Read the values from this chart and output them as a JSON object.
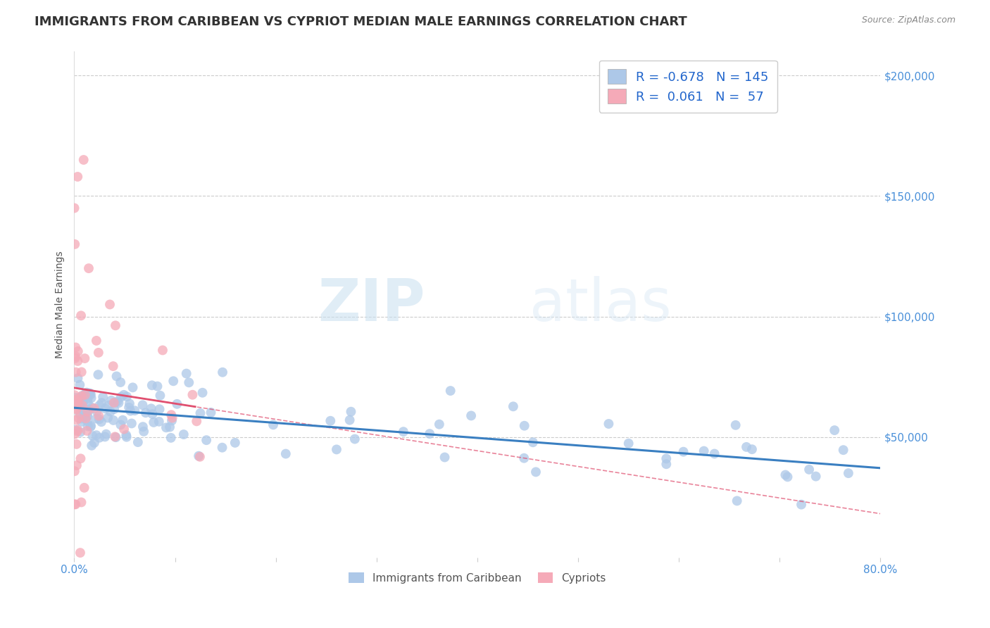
{
  "title": "IMMIGRANTS FROM CARIBBEAN VS CYPRIOT MEDIAN MALE EARNINGS CORRELATION CHART",
  "source": "Source: ZipAtlas.com",
  "xlabel": "",
  "ylabel": "Median Male Earnings",
  "series1_name": "Immigrants from Caribbean",
  "series2_name": "Cypriots",
  "series1_color": "#adc8e8",
  "series2_color": "#f5aab8",
  "series1_line_color": "#3a7fc1",
  "series2_line_color": "#e05070",
  "series1_R": "-0.678",
  "series1_N": "145",
  "series2_R": "0.061",
  "series2_N": "57",
  "xmin": 0.0,
  "xmax": 0.8,
  "ymin": 0,
  "ymax": 210000,
  "yticks": [
    0,
    50000,
    100000,
    150000,
    200000
  ],
  "ytick_labels": [
    "",
    "$50,000",
    "$100,000",
    "$150,000",
    "$200,000"
  ],
  "xticks": [
    0.0,
    0.1,
    0.2,
    0.3,
    0.4,
    0.5,
    0.6,
    0.7,
    0.8
  ],
  "watermark_text": "ZIP",
  "watermark_text2": "atlas",
  "background_color": "#ffffff",
  "grid_color": "#cccccc",
  "title_color": "#333333",
  "axis_color": "#4a90d9",
  "title_fontsize": 13,
  "label_fontsize": 10,
  "tick_fontsize": 11
}
